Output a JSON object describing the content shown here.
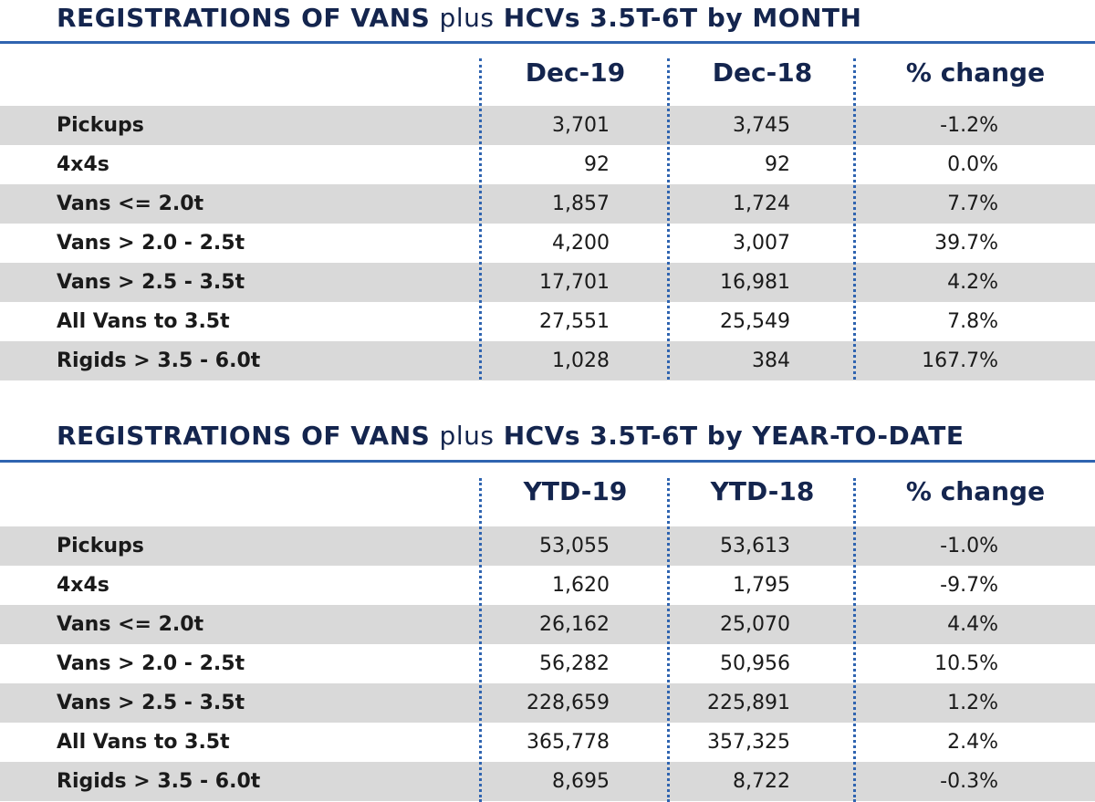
{
  "monthly": {
    "title_bold_1": "REGISTRATIONS OF VANS",
    "title_plus": "plus",
    "title_bold_2": "HCVs 3.5T-6T by MONTH",
    "headers": [
      "Dec-19",
      "Dec-18",
      "% change"
    ],
    "rows": [
      {
        "label": "Pickups",
        "v1": "3,701",
        "v2": "3,745",
        "change": "-1.2%"
      },
      {
        "label": "4x4s",
        "v1": "92",
        "v2": "92",
        "change": "0.0%"
      },
      {
        "label": "Vans <= 2.0t",
        "v1": "1,857",
        "v2": "1,724",
        "change": "7.7%"
      },
      {
        "label": "Vans > 2.0 - 2.5t",
        "v1": "4,200",
        "v2": "3,007",
        "change": "39.7%"
      },
      {
        "label": "Vans > 2.5 - 3.5t",
        "v1": "17,701",
        "v2": "16,981",
        "change": "4.2%"
      },
      {
        "label": "All Vans to 3.5t",
        "v1": "27,551",
        "v2": "25,549",
        "change": "7.8%"
      },
      {
        "label": "Rigids > 3.5 - 6.0t",
        "v1": "1,028",
        "v2": "384",
        "change": "167.7%"
      }
    ]
  },
  "ytd": {
    "title_bold_1": "REGISTRATIONS OF VANS",
    "title_plus": "plus",
    "title_bold_2": "HCVs 3.5T-6T by YEAR-TO-DATE",
    "headers": [
      "YTD-19",
      "YTD-18",
      "% change"
    ],
    "rows": [
      {
        "label": "Pickups",
        "v1": "53,055",
        "v2": "53,613",
        "change": "-1.0%"
      },
      {
        "label": "4x4s",
        "v1": "1,620",
        "v2": "1,795",
        "change": "-9.7%"
      },
      {
        "label": "Vans <= 2.0t",
        "v1": "26,162",
        "v2": "25,070",
        "change": "4.4%"
      },
      {
        "label": "Vans > 2.0 - 2.5t",
        "v1": "56,282",
        "v2": "50,956",
        "change": "10.5%"
      },
      {
        "label": "Vans > 2.5 - 3.5t",
        "v1": "228,659",
        "v2": "225,891",
        "change": "1.2%"
      },
      {
        "label": "All Vans to 3.5t",
        "v1": "365,778",
        "v2": "357,325",
        "change": "2.4%"
      },
      {
        "label": "Rigids > 3.5 - 6.0t",
        "v1": "8,695",
        "v2": "8,722",
        "change": "-0.3%"
      }
    ]
  },
  "colors": {
    "title": "#14254e",
    "rule": "#2f64b0",
    "shade": "#d9d9d9"
  }
}
